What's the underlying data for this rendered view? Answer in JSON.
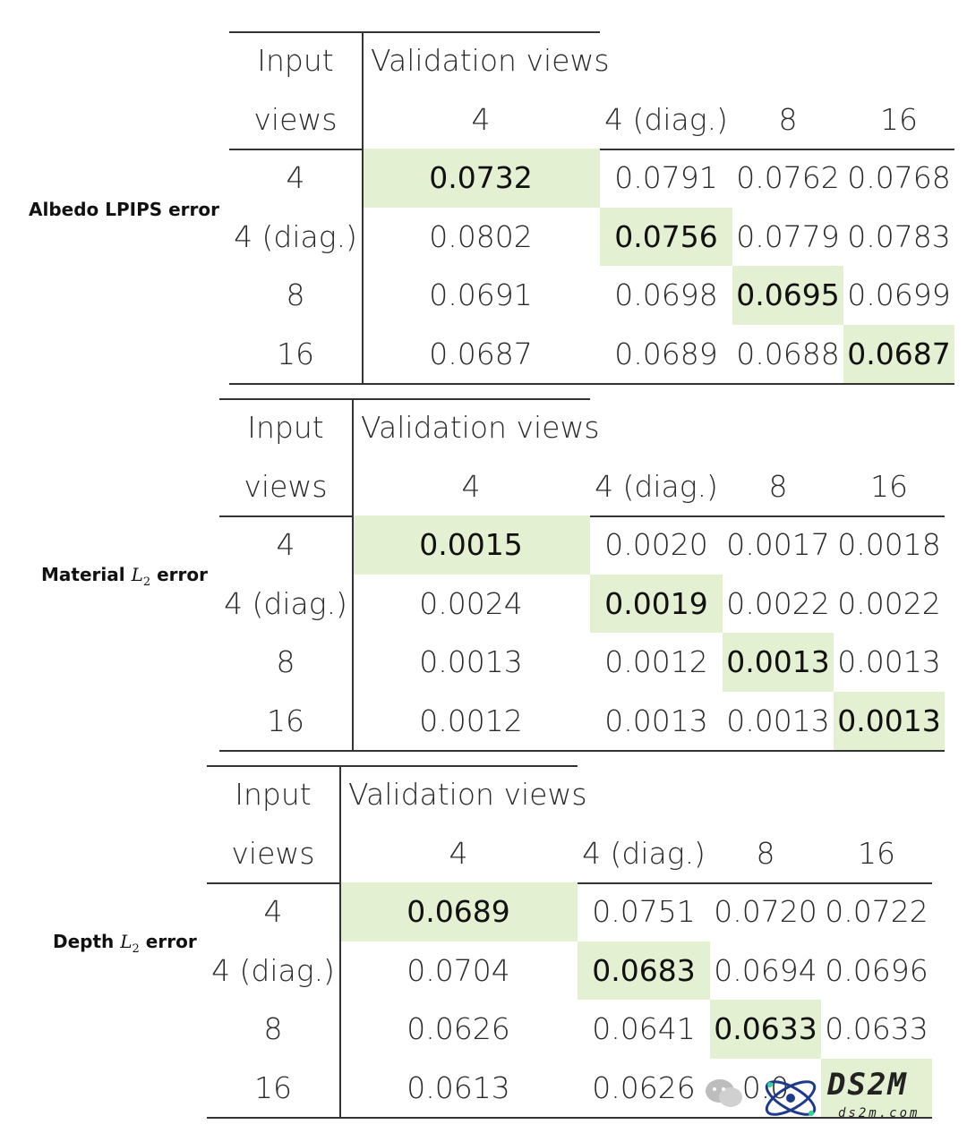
{
  "header": {
    "input_line1": "Input",
    "input_line2": "views",
    "validation_title": "Validation views",
    "columns": [
      "4",
      "4 (diag.)",
      "8",
      "16"
    ]
  },
  "row_labels": [
    "4",
    "4 (diag.)",
    "8",
    "16"
  ],
  "tables": [
    {
      "label_main": "Albedo LPIPS error",
      "label_pre": "",
      "label_var": "",
      "label_sub": "",
      "label_post": "",
      "rows": [
        [
          "0.0732",
          "0.0791",
          "0.0762",
          "0.0768"
        ],
        [
          "0.0802",
          "0.0756",
          "0.0779",
          "0.0783"
        ],
        [
          "0.0691",
          "0.0698",
          "0.0695",
          "0.0699"
        ],
        [
          "0.0687",
          "0.0689",
          "0.0688",
          "0.0687"
        ]
      ]
    },
    {
      "label_main": "",
      "label_pre": "Material",
      "label_var": "L",
      "label_sub": "2",
      "label_post": "error",
      "rows": [
        [
          "0.0015",
          "0.0020",
          "0.0017",
          "0.0018"
        ],
        [
          "0.0024",
          "0.0019",
          "0.0022",
          "0.0022"
        ],
        [
          "0.0013",
          "0.0012",
          "0.0013",
          "0.0013"
        ],
        [
          "0.0012",
          "0.0013",
          "0.0013",
          "0.0013"
        ]
      ]
    },
    {
      "label_main": "",
      "label_pre": "Depth",
      "label_var": "L",
      "label_sub": "2",
      "label_post": "error",
      "rows": [
        [
          "0.0689",
          "0.0751",
          "0.0720",
          "0.0722"
        ],
        [
          "0.0704",
          "0.0683",
          "0.0694",
          "0.0696"
        ],
        [
          "0.0626",
          "0.0641",
          "0.0633",
          "0.0633"
        ],
        [
          "0.0613",
          "0.0626",
          "0.0",
          ""
        ]
      ]
    }
  ],
  "watermark": {
    "brand": "DS2M",
    "site": "ds2m.com"
  }
}
